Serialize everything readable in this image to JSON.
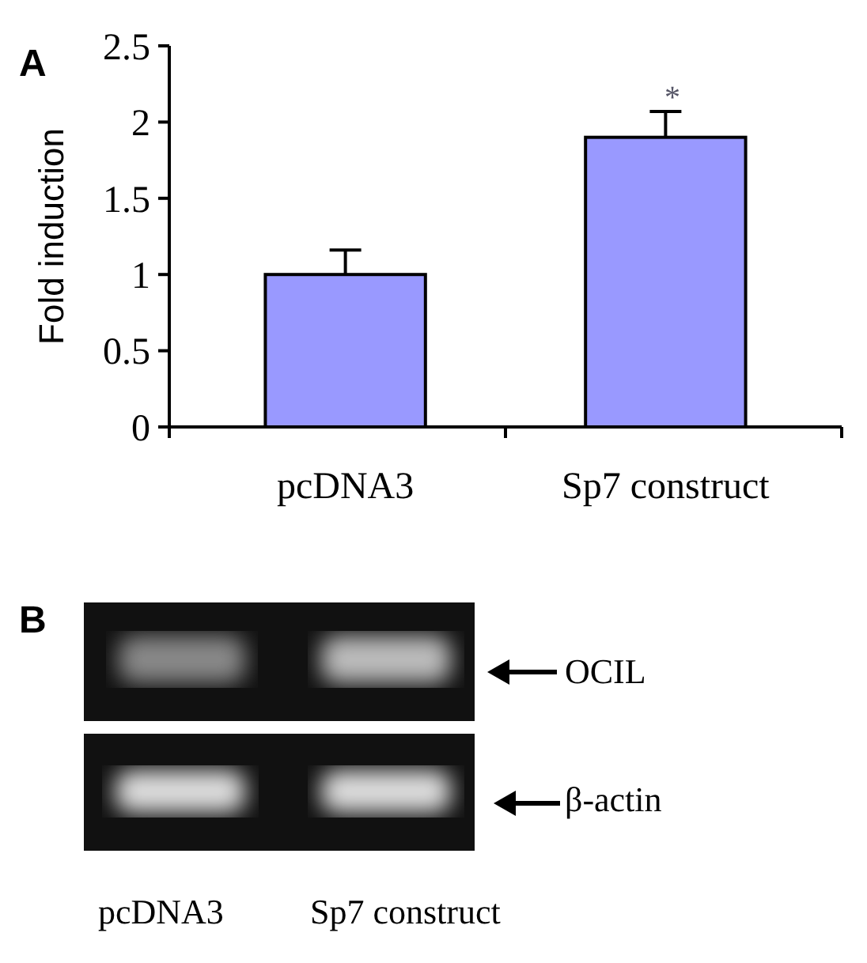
{
  "chart_data": {
    "type": "bar",
    "ylabel": "Fold induction",
    "categories": [
      "pcDNA3",
      "Sp7 construct"
    ],
    "values": [
      1.0,
      1.9
    ],
    "errors": [
      [
        1.0,
        1.16
      ],
      [
        1.9,
        2.07
      ]
    ],
    "color": "#9999ff",
    "ylim": [
      0,
      2.5
    ],
    "yticks": [
      0,
      0.5,
      1,
      1.5,
      2,
      2.5
    ],
    "grid": false,
    "legend": false,
    "annotations": [
      "A",
      "*",
      "B",
      "OCIL",
      "β-actin",
      "pcDNA3",
      "Sp7 construct"
    ]
  }
}
